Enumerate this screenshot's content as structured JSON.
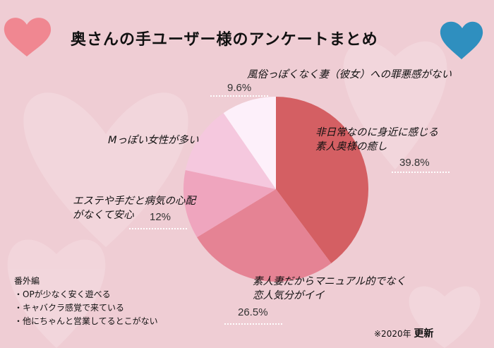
{
  "title": "奥さんの手ユーザー様のアンケートまとめ",
  "colors": {
    "background": "#efcdd4",
    "heart_left": "#f07f8a",
    "heart_right": "#2f8fbf"
  },
  "chart_data": {
    "type": "pie",
    "start": "top",
    "direction": "clockwise",
    "slices": [
      {
        "label_lines": [
          "非日常なのに身近に感じる",
          "素人奥様の癒し"
        ],
        "value": 39.8,
        "value_label": "39.8%",
        "color": "#d45f63"
      },
      {
        "label_lines": [
          "素人妻だからマニュアル的でなく",
          "恋人気分がイイ"
        ],
        "value": 26.5,
        "value_label": "26.5%",
        "color": "#e58394"
      },
      {
        "label_lines": [
          "エステや手だと病気の心配",
          "がなくて安心"
        ],
        "value": 12,
        "value_label": "12%",
        "color": "#efa5be"
      },
      {
        "label_lines": [
          "Mっぽい女性が多い"
        ],
        "value": 12.1,
        "value_label": "",
        "color": "#f5c8de"
      },
      {
        "label_lines": [
          "風俗っぽくなく妻（彼女）への罪悪感がない"
        ],
        "value": 9.6,
        "value_label": "9.6%",
        "color": "#fdf0fa"
      }
    ]
  },
  "extra": {
    "heading": "番外編",
    "items": [
      "・OPが少なく安く遊べる",
      "・キャバクラ感覚で来ている",
      "・他にちゃんと営業してるとこがない"
    ]
  },
  "note": {
    "prefix": "※2020年",
    "suffix": "更新"
  }
}
